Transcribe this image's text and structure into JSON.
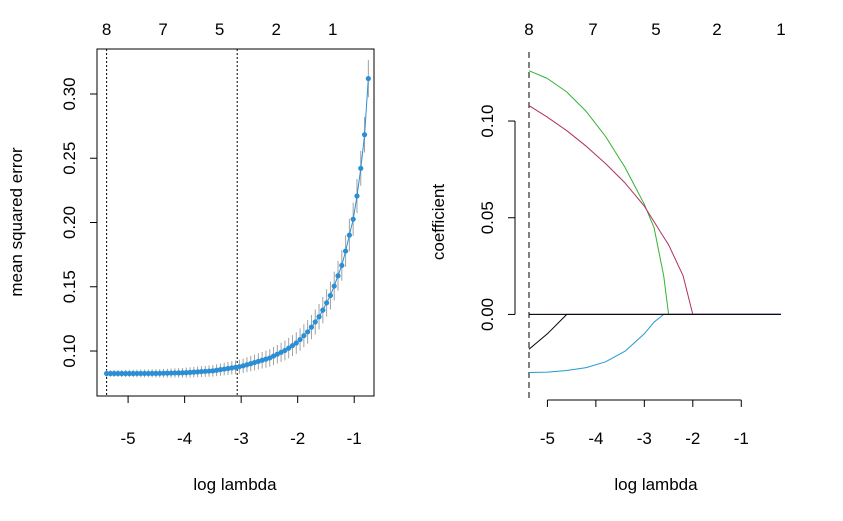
{
  "chart_data": [
    {
      "type": "scatter",
      "subtype": "cv-error-with-errorbars",
      "xlabel": "log lambda",
      "ylabel": "mean squared error",
      "xlim": [
        -5.55,
        -0.65
      ],
      "ylim": [
        0.065,
        0.335
      ],
      "x_ticks": [
        "-5",
        "-4",
        "-3",
        "-2",
        "-1"
      ],
      "y_ticks": [
        "0.10",
        "0.15",
        "0.20",
        "0.25",
        "0.30"
      ],
      "top_axis": {
        "labels": [
          "8",
          "7",
          "5",
          "2",
          "1"
        ],
        "positions": [
          -5.38,
          -4.38,
          -3.38,
          -2.38,
          -1.38
        ]
      },
      "vlines": [
        -5.38,
        -3.07
      ],
      "point_color": "#2b8fd6",
      "errorbar_color": "#a0a0a0",
      "points": [
        {
          "x": -5.38,
          "y": 0.0825,
          "err": 0.0025
        },
        {
          "x": -5.0,
          "y": 0.0825,
          "err": 0.0028
        },
        {
          "x": -4.5,
          "y": 0.0826,
          "err": 0.0032
        },
        {
          "x": -4.0,
          "y": 0.0831,
          "err": 0.0038
        },
        {
          "x": -3.5,
          "y": 0.0846,
          "err": 0.0045
        },
        {
          "x": -3.0,
          "y": 0.088,
          "err": 0.0055
        },
        {
          "x": -2.5,
          "y": 0.0945,
          "err": 0.0068
        },
        {
          "x": -2.2,
          "y": 0.101,
          "err": 0.0078
        },
        {
          "x": -2.0,
          "y": 0.107,
          "err": 0.0085
        },
        {
          "x": -1.8,
          "y": 0.116,
          "err": 0.0093
        },
        {
          "x": -1.6,
          "y": 0.128,
          "err": 0.01
        },
        {
          "x": -1.4,
          "y": 0.145,
          "err": 0.011
        },
        {
          "x": -1.2,
          "y": 0.169,
          "err": 0.012
        },
        {
          "x": -1.0,
          "y": 0.206,
          "err": 0.013
        },
        {
          "x": -0.9,
          "y": 0.236,
          "err": 0.0135
        },
        {
          "x": -0.8,
          "y": 0.275,
          "err": 0.014
        },
        {
          "x": -0.75,
          "y": 0.312,
          "err": 0.0145
        }
      ]
    },
    {
      "type": "line",
      "subtype": "coefficient-path",
      "xlabel": "log lambda",
      "ylabel": "coefficient",
      "xlim": [
        -5.38,
        -0.18
      ],
      "ylim": [
        -0.037,
        0.13
      ],
      "x_ticks": [
        "-5",
        "-4",
        "-3",
        "-2",
        "-1"
      ],
      "y_ticks": [
        "0.00",
        "0.05",
        "0.10"
      ],
      "top_axis": {
        "labels": [
          "8",
          "7",
          "5",
          "2",
          "1"
        ],
        "positions": [
          -5.38,
          -4.38,
          -3.38,
          -2.38,
          -1.38
        ]
      },
      "vlines": [
        -5.38
      ],
      "x": [
        -5.38,
        -5.0,
        -4.6,
        -4.2,
        -3.8,
        -3.4,
        -3.0,
        -2.8,
        -2.6,
        -2.5,
        -2.2,
        -2.0,
        -1.8,
        -1.0,
        -0.18
      ],
      "series": [
        {
          "color": "#33b233",
          "values": [
            0.126,
            0.122,
            0.115,
            0.105,
            0.092,
            0.076,
            0.057,
            0.045,
            0.02,
            0.0,
            0.0,
            0.0,
            0.0,
            0.0,
            0.0
          ]
        },
        {
          "color": "#b03060",
          "values": [
            0.108,
            0.102,
            0.095,
            0.087,
            0.078,
            0.068,
            0.056,
            0.048,
            0.04,
            0.036,
            0.02,
            0.0,
            0.0,
            0.0,
            0.0
          ]
        },
        {
          "color": "#2299d0",
          "values": [
            -0.03,
            -0.0298,
            -0.029,
            -0.0275,
            -0.0245,
            -0.019,
            -0.01,
            -0.004,
            0.0,
            0.0,
            0.0,
            0.0,
            0.0,
            0.0,
            0.0
          ]
        },
        {
          "color": "#000000",
          "values": [
            -0.018,
            -0.01,
            0.0,
            0.0,
            0.0,
            0.0,
            0.0,
            0.0,
            0.0,
            0.0,
            0.0,
            0.0,
            0.0,
            0.0,
            0.0
          ]
        },
        {
          "color": "#9932cc",
          "values": [
            0.0,
            0.0,
            0.0,
            0.0,
            0.0,
            0.0,
            0.0,
            0.0,
            0.0,
            0.0,
            0.0,
            0.0,
            0.0,
            0.0,
            0.0
          ]
        },
        {
          "color": "#000000",
          "values": [
            0.0,
            0.0,
            0.0,
            0.0,
            0.0,
            0.0,
            0.0,
            0.0,
            0.0,
            0.0,
            0.0,
            0.0,
            0.0,
            0.0,
            0.0
          ]
        }
      ]
    }
  ]
}
